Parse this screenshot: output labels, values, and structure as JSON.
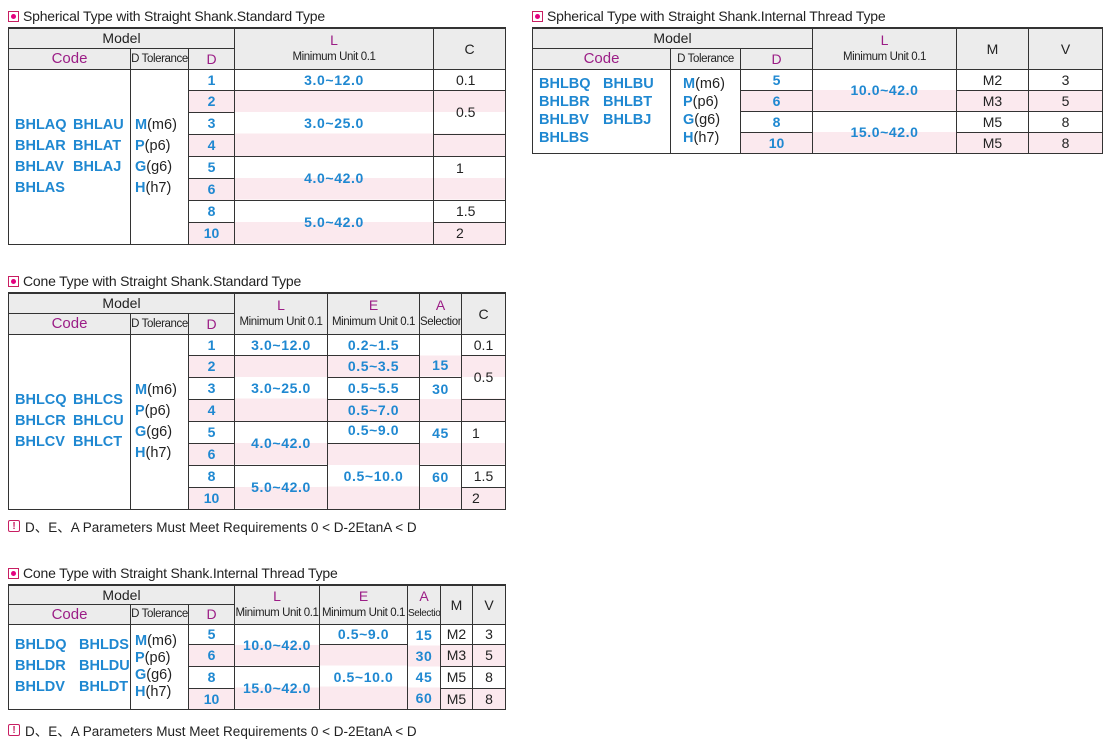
{
  "t1": {
    "title": "Spherical Type with Straight Shank.Standard Type",
    "h_model": "Model",
    "h_code": "Code",
    "h_dtol": "D Tolerance",
    "h_d": "D",
    "h_l": "L",
    "h_lunit": "Minimum Unit 0.1",
    "h_c": "C",
    "codes": [
      "BHLAQ",
      "BHLAU",
      "BHLAR",
      "BHLAT",
      "BHLAV",
      "BHLAJ",
      "BHLAS"
    ],
    "tol": [
      {
        "k": "M",
        "v": "(m6)"
      },
      {
        "k": "P",
        "v": "(p6)"
      },
      {
        "k": "G",
        "v": "(g6)"
      },
      {
        "k": "H",
        "v": "(h7)"
      }
    ],
    "d": [
      "1",
      "2",
      "3",
      "4",
      "5",
      "6",
      "8",
      "10"
    ],
    "l": [
      "3.0~12.0",
      "3.0~25.0",
      "4.0~42.0",
      "5.0~42.0"
    ],
    "c": [
      "0.1",
      "0.5",
      "1",
      "1.5",
      "2"
    ]
  },
  "t2": {
    "title": "Spherical Type with Straight Shank.Internal Thread Type",
    "h_model": "Model",
    "h_code": "Code",
    "h_dtol": "D Tolerance",
    "h_d": "D",
    "h_l": "L",
    "h_lunit": "Minimum Unit 0.1",
    "h_m": "M",
    "h_v": "V",
    "codes": [
      "BHLBQ",
      "BHLBU",
      "BHLBR",
      "BHLBT",
      "BHLBV",
      "BHLBJ",
      "BHLBS"
    ],
    "tol": [
      {
        "k": "M",
        "v": "(m6)"
      },
      {
        "k": "P",
        "v": "(p6)"
      },
      {
        "k": "G",
        "v": "(g6)"
      },
      {
        "k": "H",
        "v": "(h7)"
      }
    ],
    "d": [
      "5",
      "6",
      "8",
      "10"
    ],
    "l": [
      "10.0~42.0",
      "15.0~42.0"
    ],
    "m": [
      "M2",
      "M3",
      "M5",
      "M5"
    ],
    "v": [
      "3",
      "5",
      "8",
      "8"
    ]
  },
  "t3": {
    "title": "Cone Type with Straight Shank.Standard Type",
    "h_model": "Model",
    "h_code": "Code",
    "h_dtol": "D Tolerance",
    "h_d": "D",
    "h_l": "L",
    "h_lunit": "Minimum Unit 0.1",
    "h_e": "E",
    "h_eunit": "Minimum Unit 0.1",
    "h_a": "A",
    "h_aunit": "Selection",
    "h_c": "C",
    "codes": [
      "BHLCQ",
      "BHLCS",
      "BHLCR",
      "BHLCU",
      "BHLCV",
      "BHLCT"
    ],
    "tol": [
      {
        "k": "M",
        "v": "(m6)"
      },
      {
        "k": "P",
        "v": "(p6)"
      },
      {
        "k": "G",
        "v": "(g6)"
      },
      {
        "k": "H",
        "v": "(h7)"
      }
    ],
    "d": [
      "1",
      "2",
      "3",
      "4",
      "5",
      "6",
      "8",
      "10"
    ],
    "l": [
      "3.0~12.0",
      "3.0~25.0",
      "4.0~42.0",
      "5.0~42.0"
    ],
    "e": [
      "0.2~1.5",
      "0.5~3.5",
      "0.5~5.5",
      "0.5~7.0",
      "0.5~9.0",
      "0.5~10.0"
    ],
    "a": [
      "15",
      "30",
      "45",
      "60"
    ],
    "c": [
      "0.1",
      "0.5",
      "1",
      "1.5",
      "2"
    ],
    "note": "D、E、A Parameters Must Meet Requirements 0 < D-2EtanA < D"
  },
  "t4": {
    "title": "Cone Type with Straight Shank.Internal Thread Type",
    "h_model": "Model",
    "h_code": "Code",
    "h_dtol": "D Tolerance",
    "h_d": "D",
    "h_l": "L",
    "h_lunit": "Minimum Unit 0.1",
    "h_e": "E",
    "h_eunit": "Minimum Unit 0.1",
    "h_a": "A",
    "h_aunit": "Selection",
    "h_m": "M",
    "h_v": "V",
    "codes": [
      "BHLDQ",
      "BHLDS",
      "BHLDR",
      "BHLDU",
      "BHLDV",
      "BHLDT"
    ],
    "tol": [
      {
        "k": "M",
        "v": "(m6)"
      },
      {
        "k": "P",
        "v": "(p6)"
      },
      {
        "k": "G",
        "v": "(g6)"
      },
      {
        "k": "H",
        "v": "(h7)"
      }
    ],
    "d": [
      "5",
      "6",
      "8",
      "10"
    ],
    "l": [
      "10.0~42.0",
      "15.0~42.0"
    ],
    "e": [
      "0.5~9.0",
      "0.5~10.0"
    ],
    "a": [
      "15",
      "30",
      "45",
      "60"
    ],
    "m": [
      "M2",
      "M3",
      "M5",
      "M5"
    ],
    "v": [
      "3",
      "5",
      "8",
      "8"
    ],
    "note": "D、E、A Parameters Must Meet Requirements 0 < D-2EtanA < D"
  }
}
